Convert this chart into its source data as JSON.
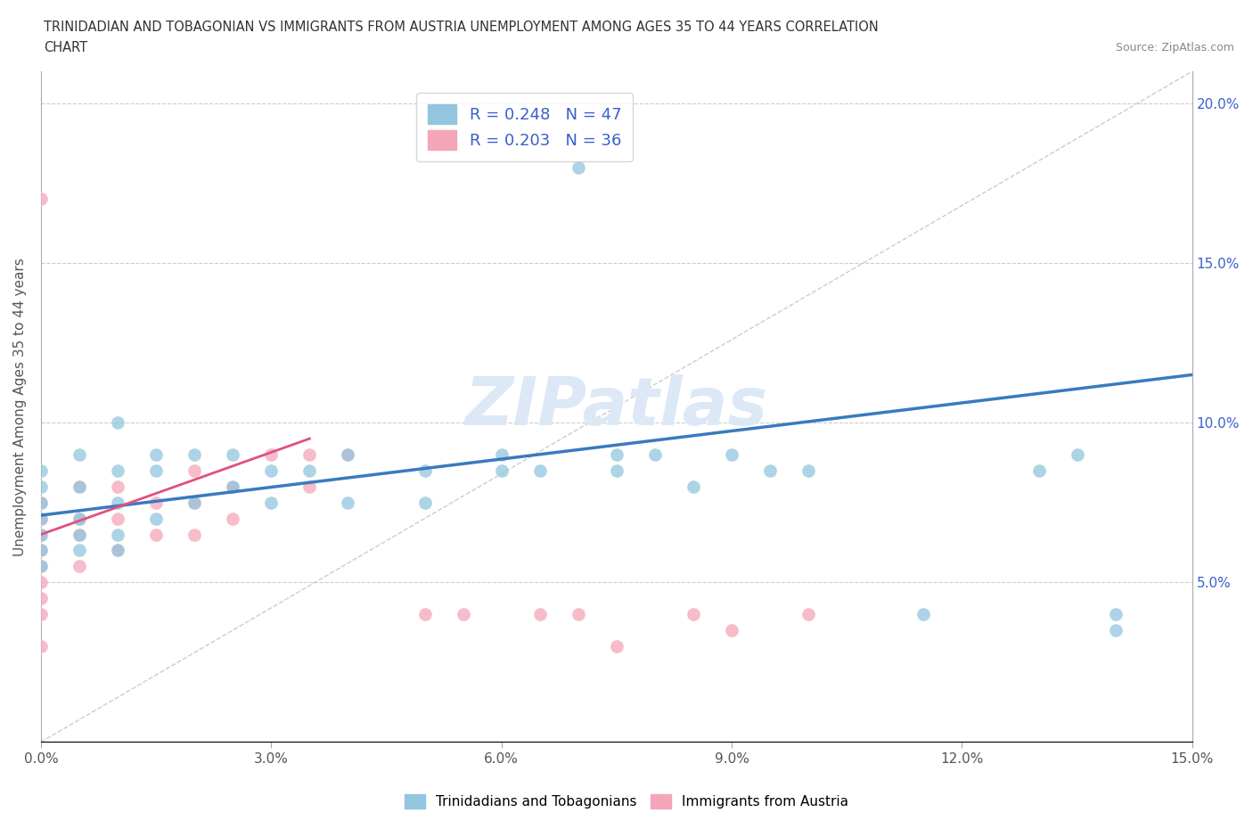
{
  "title_line1": "TRINIDADIAN AND TOBAGONIAN VS IMMIGRANTS FROM AUSTRIA UNEMPLOYMENT AMONG AGES 35 TO 44 YEARS CORRELATION",
  "title_line2": "CHART",
  "source": "Source: ZipAtlas.com",
  "ylabel": "Unemployment Among Ages 35 to 44 years",
  "xlim": [
    0.0,
    0.15
  ],
  "ylim": [
    0.0,
    0.21
  ],
  "xticks": [
    0.0,
    0.03,
    0.06,
    0.09,
    0.12,
    0.15
  ],
  "yticks": [
    0.0,
    0.05,
    0.1,
    0.15,
    0.2
  ],
  "xtick_labels": [
    "0.0%",
    "3.0%",
    "6.0%",
    "9.0%",
    "12.0%",
    "15.0%"
  ],
  "ytick_labels": [
    "",
    "5.0%",
    "10.0%",
    "15.0%",
    "20.0%"
  ],
  "blue_color": "#92c5de",
  "pink_color": "#f4a6b8",
  "blue_line_color": "#3a7abf",
  "pink_line_color": "#e05080",
  "R_blue": 0.248,
  "N_blue": 47,
  "R_pink": 0.203,
  "N_pink": 36,
  "legend_text_color": "#3a5fcd",
  "blue_scatter_x": [
    0.0,
    0.0,
    0.0,
    0.0,
    0.0,
    0.0,
    0.0,
    0.005,
    0.005,
    0.005,
    0.005,
    0.005,
    0.01,
    0.01,
    0.01,
    0.01,
    0.01,
    0.015,
    0.015,
    0.015,
    0.02,
    0.02,
    0.025,
    0.025,
    0.03,
    0.03,
    0.035,
    0.04,
    0.04,
    0.05,
    0.05,
    0.06,
    0.06,
    0.065,
    0.07,
    0.075,
    0.075,
    0.08,
    0.085,
    0.09,
    0.095,
    0.1,
    0.115,
    0.13,
    0.135,
    0.14,
    0.14
  ],
  "blue_scatter_y": [
    0.055,
    0.06,
    0.065,
    0.07,
    0.075,
    0.08,
    0.085,
    0.06,
    0.065,
    0.07,
    0.08,
    0.09,
    0.06,
    0.065,
    0.075,
    0.085,
    0.1,
    0.07,
    0.085,
    0.09,
    0.075,
    0.09,
    0.08,
    0.09,
    0.075,
    0.085,
    0.085,
    0.075,
    0.09,
    0.075,
    0.085,
    0.085,
    0.09,
    0.085,
    0.18,
    0.085,
    0.09,
    0.09,
    0.08,
    0.09,
    0.085,
    0.085,
    0.04,
    0.085,
    0.09,
    0.04,
    0.035
  ],
  "pink_scatter_x": [
    0.0,
    0.0,
    0.0,
    0.0,
    0.0,
    0.0,
    0.0,
    0.0,
    0.0,
    0.0,
    0.005,
    0.005,
    0.005,
    0.005,
    0.01,
    0.01,
    0.01,
    0.015,
    0.015,
    0.02,
    0.02,
    0.02,
    0.025,
    0.025,
    0.03,
    0.035,
    0.035,
    0.04,
    0.05,
    0.055,
    0.065,
    0.07,
    0.075,
    0.085,
    0.09,
    0.1
  ],
  "pink_scatter_y": [
    0.03,
    0.04,
    0.045,
    0.05,
    0.055,
    0.06,
    0.065,
    0.07,
    0.075,
    0.17,
    0.055,
    0.065,
    0.07,
    0.08,
    0.06,
    0.07,
    0.08,
    0.065,
    0.075,
    0.065,
    0.075,
    0.085,
    0.07,
    0.08,
    0.09,
    0.08,
    0.09,
    0.09,
    0.04,
    0.04,
    0.04,
    0.04,
    0.03,
    0.04,
    0.035,
    0.04
  ]
}
